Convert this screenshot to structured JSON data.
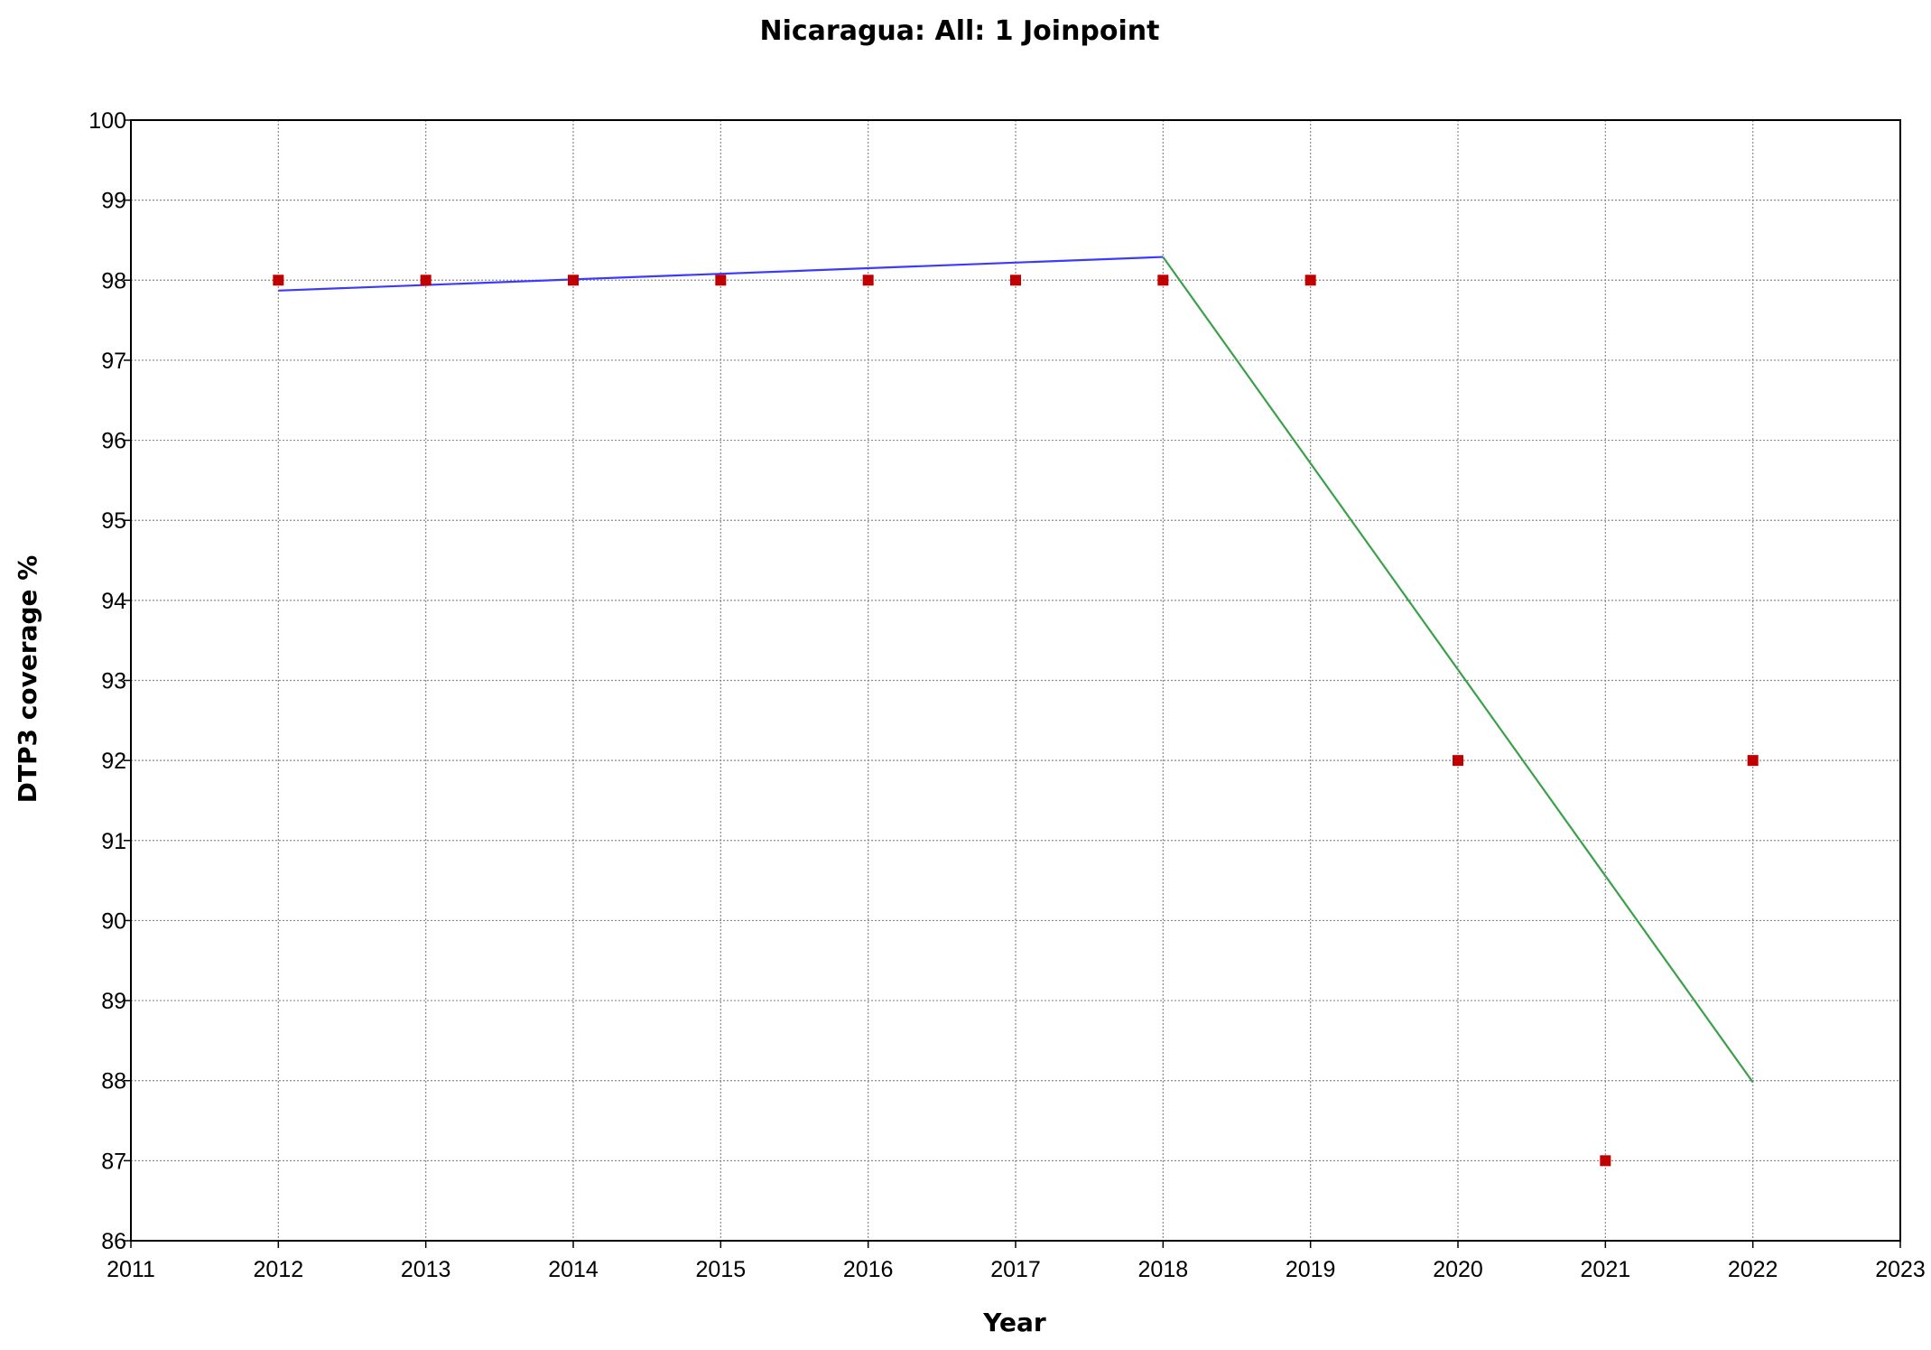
{
  "chart_data": {
    "type": "line",
    "title": "Nicaragua: All: 1 Joinpoint",
    "xlabel": "Year",
    "ylabel": "DTP3 coverage %",
    "xlim": [
      2011,
      2023
    ],
    "ylim": [
      86,
      100
    ],
    "x_ticks": [
      2011,
      2012,
      2013,
      2014,
      2015,
      2016,
      2017,
      2018,
      2019,
      2020,
      2021,
      2022,
      2023
    ],
    "y_ticks": [
      86,
      87,
      88,
      89,
      90,
      91,
      92,
      93,
      94,
      95,
      96,
      97,
      98,
      99,
      100
    ],
    "grid": true,
    "observed": {
      "x": [
        2012,
        2013,
        2014,
        2015,
        2016,
        2017,
        2018,
        2019,
        2020,
        2021,
        2022
      ],
      "y": [
        98,
        98,
        98,
        98,
        98,
        98,
        98,
        98,
        92,
        87,
        92
      ],
      "color": "#c00000"
    },
    "segments": [
      {
        "x": [
          2012,
          2018
        ],
        "y": [
          97.87,
          98.29
        ],
        "color": "#3b3bff"
      },
      {
        "x": [
          2018,
          2022
        ],
        "y": [
          98.29,
          87.98
        ],
        "color": "#3aa04a"
      }
    ]
  }
}
